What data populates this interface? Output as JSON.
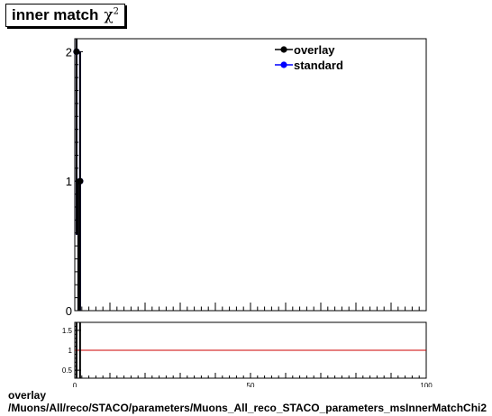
{
  "title": {
    "text": "inner match",
    "symbol": "χ",
    "superscript": "2"
  },
  "caption": {
    "line1": "overlay",
    "line2": "/Muons/All/reco/STACO/parameters/Muons_All_reco_STACO_parameters_msInnerMatchChi2"
  },
  "colors": {
    "overlay": "#000000",
    "standard": "#0000ff",
    "ratio_line": "#cc0000"
  },
  "chart_data": [
    {
      "type": "line",
      "title": "inner match χ2",
      "xlim": [
        0,
        100
      ],
      "ylim": [
        0,
        2.1
      ],
      "yticks": [
        0,
        1,
        2
      ],
      "grid": false,
      "legend_position": "top-right",
      "series": [
        {
          "name": "overlay",
          "color": "#000000",
          "x": [
            0.5,
            1.5
          ],
          "y": [
            2,
            1
          ]
        },
        {
          "name": "standard",
          "color": "#0000ff",
          "x": [
            0.5,
            1.5
          ],
          "y": [
            2,
            1
          ]
        }
      ]
    },
    {
      "type": "line",
      "xlim": [
        0,
        100
      ],
      "ylim": [
        0.3,
        1.7
      ],
      "xticks": [
        0,
        50,
        100
      ],
      "yticks": [
        0.5,
        1,
        1.5
      ],
      "grid": false,
      "series": [
        {
          "x": [
            0,
            100
          ],
          "y": [
            1,
            1
          ]
        }
      ]
    }
  ]
}
